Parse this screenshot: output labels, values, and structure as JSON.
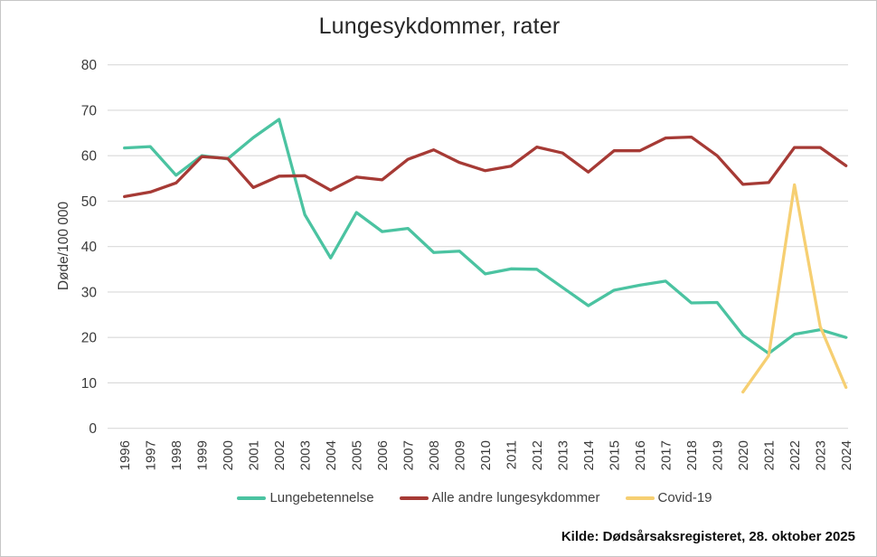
{
  "source": "Kilde: Dødsårsaksregisteret, 28. oktober 2025",
  "colors": {
    "pneumonia": "#4bc3a1",
    "other_lung_diseases": "#a63a35",
    "covid": "#f6cf72",
    "gridline": "#d9d9d9",
    "axis_text": "#3b3b3b",
    "title_text": "#262626"
  },
  "chart_data": {
    "type": "line",
    "title": "Lungesykdommer, rater",
    "xlabel": "",
    "ylabel": "Døde/100 000",
    "ylim": [
      0,
      80
    ],
    "ytick_step": 10,
    "grid": true,
    "legend_position": "bottom",
    "categories": [
      "1996",
      "1997",
      "1998",
      "1999",
      "2000",
      "2001",
      "2002",
      "2003",
      "2004",
      "2005",
      "2006",
      "2007",
      "2008",
      "2009",
      "2010",
      "2011",
      "2012",
      "2013",
      "2014",
      "2015",
      "2016",
      "2017",
      "2018",
      "2019",
      "2020",
      "2021",
      "2022",
      "2023",
      "2024"
    ],
    "series": [
      {
        "name": "Lungebetennelse",
        "color": "#4bc3a1",
        "values": [
          61.7,
          62,
          55.7,
          60,
          59.3,
          64,
          68,
          47,
          37.5,
          47.5,
          43.3,
          44,
          38.7,
          39,
          34,
          35.1,
          35,
          31,
          27,
          30.4,
          31.5,
          32.4,
          27.6,
          27.7,
          20.5,
          16.5,
          20.7,
          21.7,
          20
        ]
      },
      {
        "name": "Alle andre lungesykdommer",
        "color": "#a63a35",
        "values": [
          51,
          52,
          54,
          59.8,
          59.4,
          53,
          55.5,
          55.6,
          52.4,
          55.3,
          54.7,
          59.2,
          61.3,
          58.5,
          56.7,
          57.7,
          61.9,
          60.6,
          56.4,
          61.1,
          61.1,
          63.9,
          64.1,
          60,
          53.7,
          54.1,
          61.8,
          61.8,
          57.8
        ]
      },
      {
        "name": "Covid-19",
        "color": "#f6cf72",
        "values": [
          null,
          null,
          null,
          null,
          null,
          null,
          null,
          null,
          null,
          null,
          null,
          null,
          null,
          null,
          null,
          null,
          null,
          null,
          null,
          null,
          null,
          null,
          null,
          null,
          8,
          16,
          53.6,
          22.4,
          9
        ]
      }
    ]
  }
}
